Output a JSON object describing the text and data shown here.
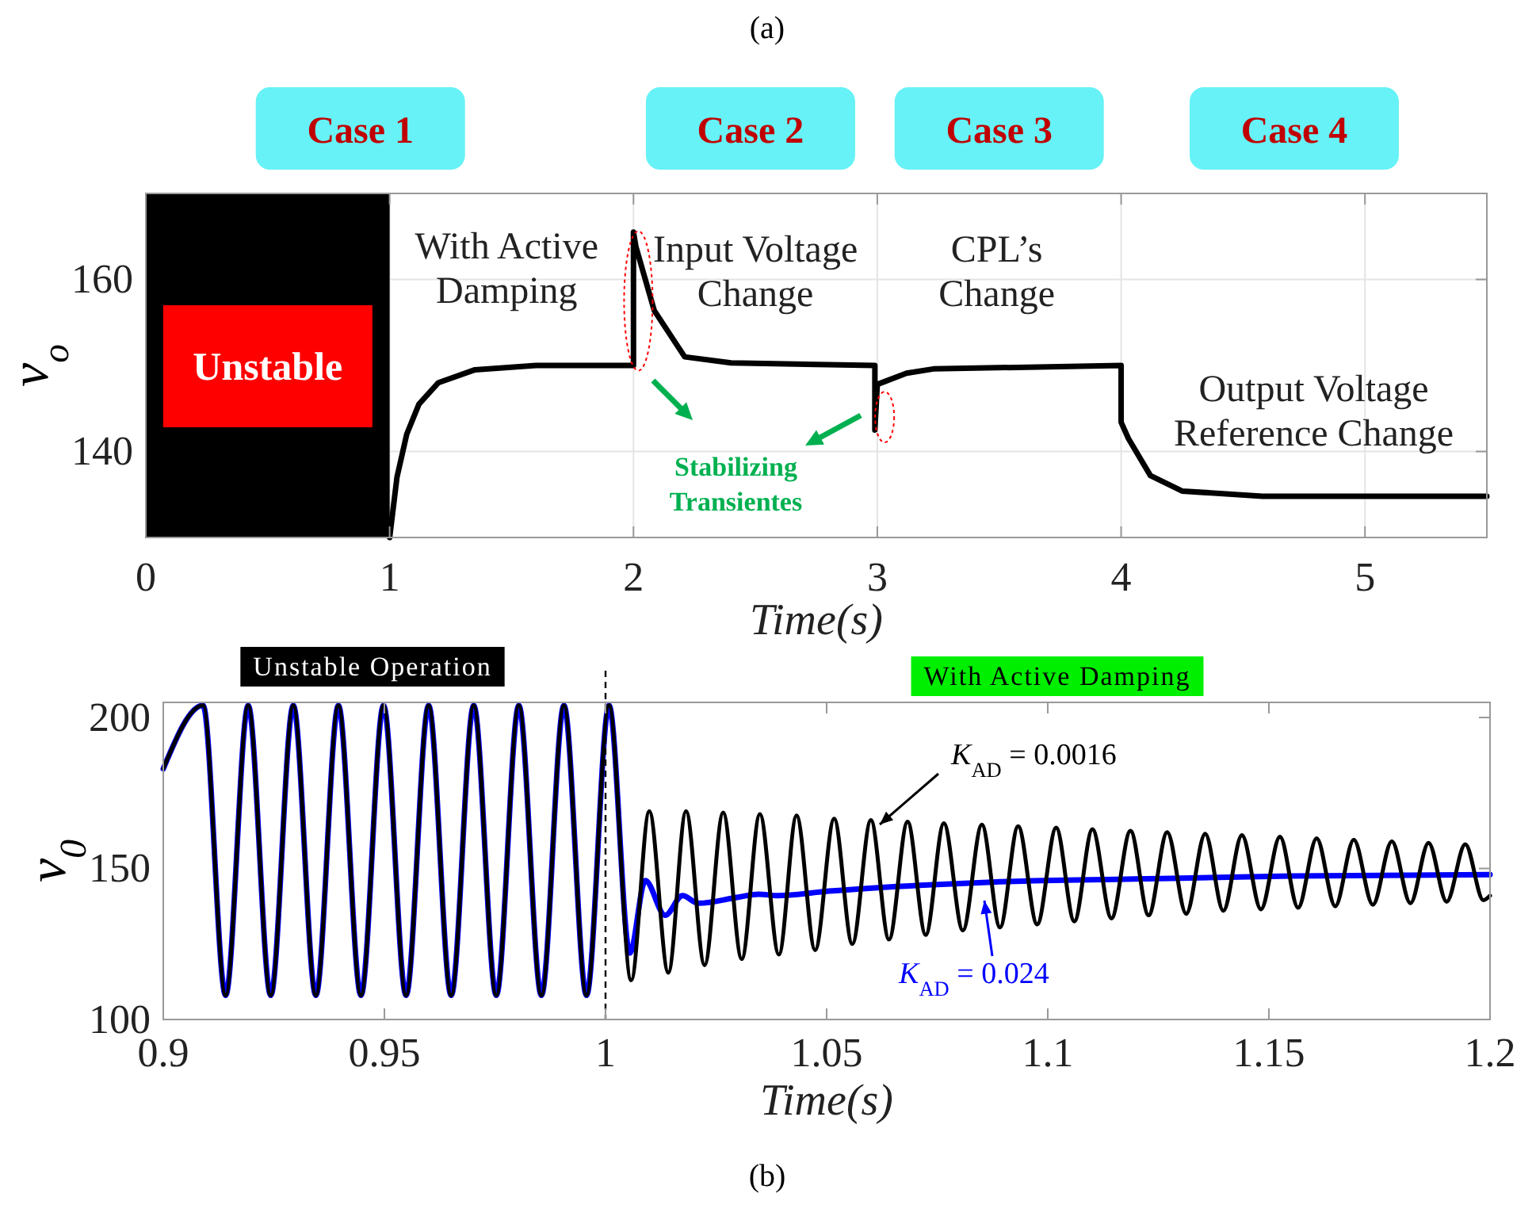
{
  "chart_data": [
    {
      "type": "line",
      "title": "(a)",
      "xlabel": "Time(s)",
      "ylabel": "v$_{o}$",
      "xlim": [
        0,
        5.5
      ],
      "ylim": [
        130,
        170
      ],
      "xticks": [
        0,
        1,
        2,
        3,
        4,
        5
      ],
      "yticks": [
        140,
        160
      ],
      "grid": true,
      "x": [
        1,
        1.03,
        1.07,
        1.12,
        1.2,
        1.35,
        1.6,
        2.0,
        2.0,
        2.01,
        2.085,
        2.21,
        2.4,
        2.99,
        2.99,
        3.0,
        3.12,
        3.23,
        4.0,
        4.0,
        4.03,
        4.12,
        4.25,
        4.58,
        5.5
      ],
      "series": [
        {
          "color": "#000000",
          "values": [
            130,
            137,
            142,
            145.5,
            148,
            149.5,
            150,
            150,
            165.5,
            163.8,
            156.4,
            151,
            150.3,
            150,
            142.5,
            147.8,
            149.1,
            149.6,
            150,
            143.4,
            141.5,
            137.2,
            135.4,
            134.8,
            134.8
          ]
        }
      ],
      "bands": [
        {
          "axis": "x",
          "from": 0,
          "to": 1,
          "label": "Unstable",
          "color": "#000000"
        }
      ],
      "annotations": [
        "Case 1",
        "Case 2",
        "Case 3",
        "Case 4",
        "With Active Damping",
        "Input Voltage Change",
        "CPL’s Change",
        "Output Voltage Reference Change",
        "Stabilizing Transientes"
      ]
    },
    {
      "type": "line",
      "title": "(b)",
      "xlabel": "Time(s)",
      "ylabel": "v$_{0}$",
      "xlim": [
        0.9,
        1.2
      ],
      "ylim": [
        100,
        205
      ],
      "xticks": [
        0.9,
        0.95,
        1,
        1.05,
        1.1,
        1.15,
        1.2
      ],
      "yticks": [
        100,
        150,
        200
      ],
      "series": [
        {
          "name": "K$_{AD}$ = 0.024",
          "color": "#0000ff",
          "x": [
            0.9,
            0.909,
            0.9141,
            0.9192,
            0.9243,
            0.9294,
            0.9345,
            0.9396,
            0.9447,
            0.9498,
            0.9549,
            0.96,
            0.9651,
            0.9702,
            0.9753,
            0.9804,
            0.9855,
            0.9906,
            0.9957,
            1.0008,
            1.0055,
            1.009,
            1.0135,
            1.0174,
            1.021,
            1.03,
            1.0346,
            1.039,
            1.0505,
            1.0719,
            1.0874,
            1.1195,
            1.1552,
            1.2
          ],
          "values": [
            183,
            204,
            108,
            204,
            108,
            204,
            108,
            204,
            108,
            204,
            108,
            204,
            108,
            204,
            108,
            204,
            108,
            204,
            108,
            204,
            122,
            146,
            134.5,
            141,
            138.5,
            140.5,
            141.5,
            141,
            142.5,
            144.5,
            145.5,
            146.5,
            147.5,
            148
          ]
        },
        {
          "name": "K$_{AD}$ = 0.0016",
          "color": "#000000",
          "x": [
            0.9,
            0.909,
            0.9141,
            0.9192,
            0.9243,
            0.9294,
            0.9345,
            0.9396,
            0.9447,
            0.9498,
            0.9549,
            0.96,
            0.9651,
            0.9702,
            0.9753,
            0.9804,
            0.9855,
            0.9906,
            0.9957,
            1.0008,
            1.0058,
            1.0099,
            1.0142,
            1.0182,
            1.0224,
            1.0266,
            1.0308,
            1.0349,
            1.0392,
            1.0432,
            1.0474,
            1.0517,
            1.0558,
            1.06,
            1.0641,
            1.0683,
            1.0724,
            1.0765,
            1.0808,
            1.0851,
            1.0892,
            1.0933,
            1.0976,
            1.1019,
            1.106,
            1.1101,
            1.1144,
            1.1187,
            1.1228,
            1.127,
            1.1313,
            1.1356,
            1.1397,
            1.1439,
            1.1482,
            1.1525,
            1.1566,
            1.1608,
            1.165,
            1.1692,
            1.1735,
            1.1778,
            1.182,
            1.1861,
            1.1902,
            1.1944,
            1.1985,
            1.2
          ],
          "values": [
            183,
            204,
            108,
            204,
            108,
            204,
            108,
            204,
            108,
            204,
            108,
            204,
            108,
            204,
            108,
            204,
            108,
            204,
            108,
            204,
            113,
            169,
            115.5,
            169,
            118,
            168.5,
            120,
            168,
            121.5,
            167.5,
            123,
            166.5,
            125,
            166,
            126.5,
            165.5,
            128,
            165,
            129.5,
            164.5,
            130.5,
            164,
            131.5,
            163.5,
            132.5,
            163,
            133.5,
            162.5,
            134.5,
            162,
            135,
            161.5,
            136,
            161,
            136.5,
            160.5,
            137,
            160,
            137.5,
            159.5,
            138,
            159,
            138.5,
            158.5,
            139,
            158,
            139.5,
            141
          ]
        }
      ],
      "ref_lines": [
        {
          "axis": "x",
          "value": 1,
          "line_style": "dashed",
          "color": "#000000"
        }
      ],
      "annotations": [
        "Unstable Operation",
        "With Active Damping"
      ]
    }
  ]
}
